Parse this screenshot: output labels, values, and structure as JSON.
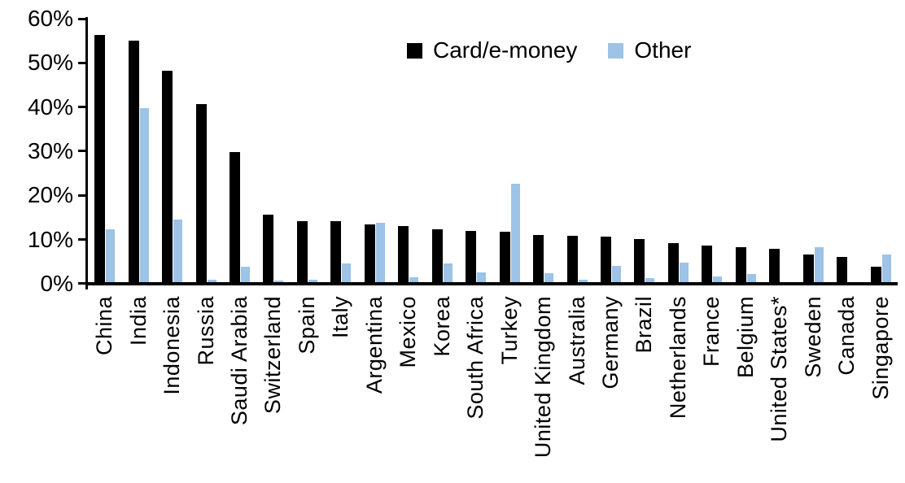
{
  "chart_data": {
    "type": "bar",
    "title": "",
    "xlabel": "",
    "ylabel": "",
    "ylim": [
      0,
      60
    ],
    "grid": false,
    "legend_position": "top-center",
    "yticks_top_to_bottom": [
      "60%",
      "50%",
      "40%",
      "30%",
      "20%",
      "10%",
      "0%"
    ],
    "categories": [
      "China",
      "India",
      "Indonesia",
      "Russia",
      "Saudi Arabia",
      "Switzerland",
      "Spain",
      "Italy",
      "Argentina",
      "Mexico",
      "Korea",
      "South Africa",
      "Turkey",
      "United Kingdom",
      "Australia",
      "Germany",
      "Brazil",
      "Netherlands",
      "France",
      "Belgium",
      "United States*",
      "Sweden",
      "Canada",
      "Singapore"
    ],
    "series": [
      {
        "name": "Card/e-money",
        "color": "#000000",
        "values": [
          56.3,
          55.0,
          48.3,
          40.6,
          29.9,
          15.6,
          14.2,
          14.1,
          13.5,
          13.0,
          12.3,
          11.9,
          11.7,
          11.1,
          10.9,
          10.6,
          10.1,
          9.3,
          8.7,
          8.2,
          7.9,
          6.6,
          6.1,
          3.9
        ]
      },
      {
        "name": "Other",
        "color": "#9DC3E6",
        "values": [
          12.4,
          39.8,
          14.5,
          1.0,
          3.9,
          0.8,
          1.0,
          4.6,
          13.9,
          1.4,
          4.7,
          2.5,
          22.6,
          2.4,
          1.0,
          4.0,
          1.3,
          4.8,
          1.6,
          2.2,
          0.3,
          8.2,
          0.0,
          6.7
        ]
      }
    ]
  },
  "colors": {
    "axis": "#000000",
    "background": "#ffffff",
    "card_e_money": "#000000",
    "other": "#9DC3E6"
  }
}
